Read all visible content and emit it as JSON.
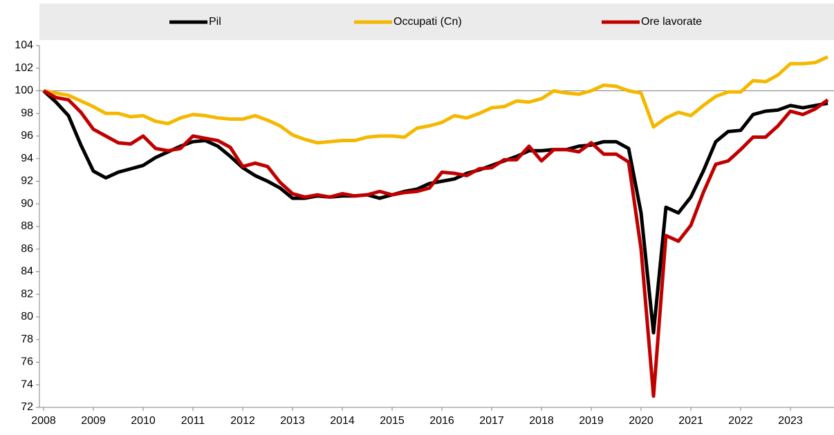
{
  "chart_data": {
    "type": "line",
    "categories": [
      "2008",
      null,
      null,
      null,
      "2009",
      null,
      null,
      null,
      "2010",
      null,
      null,
      null,
      "2011",
      null,
      null,
      null,
      "2012",
      null,
      null,
      null,
      "2013",
      null,
      null,
      null,
      "2014",
      null,
      null,
      null,
      "2015",
      null,
      null,
      null,
      "2016",
      null,
      null,
      null,
      "2017",
      null,
      null,
      null,
      "2018",
      null,
      null,
      null,
      "2019",
      null,
      null,
      null,
      "2020",
      null,
      null,
      null,
      "2021",
      null,
      null,
      null,
      "2022",
      null,
      null,
      null,
      "2023",
      null,
      null,
      null
    ],
    "series": [
      {
        "name": "Pil",
        "color": "#000000",
        "values": [
          100,
          99.0,
          97.8,
          95.2,
          92.9,
          92.3,
          92.8,
          93.1,
          93.4,
          94.1,
          94.6,
          95.1,
          95.5,
          95.6,
          95.1,
          94.2,
          93.2,
          92.5,
          92.0,
          91.4,
          90.5,
          90.5,
          90.7,
          90.6,
          90.7,
          90.7,
          90.8,
          90.5,
          90.8,
          91.1,
          91.3,
          91.8,
          92.0,
          92.2,
          92.7,
          93.0,
          93.4,
          93.8,
          94.2,
          94.7,
          94.7,
          94.8,
          94.8,
          95.1,
          95.2,
          95.5,
          95.5,
          94.9,
          89.2,
          78.6,
          89.7,
          89.2,
          90.6,
          92.9,
          95.5,
          96.4,
          96.5,
          97.9,
          98.2,
          98.3,
          98.7,
          98.5,
          98.7,
          98.9
        ]
      },
      {
        "name": "Occupati (Cn)",
        "color": "#f5b800",
        "values": [
          100,
          99.8,
          99.6,
          99.1,
          98.6,
          98.0,
          98.0,
          97.7,
          97.8,
          97.3,
          97.1,
          97.6,
          97.9,
          97.8,
          97.6,
          97.5,
          97.5,
          97.8,
          97.4,
          96.9,
          96.1,
          95.7,
          95.4,
          95.5,
          95.6,
          95.6,
          95.9,
          96.0,
          96.0,
          95.9,
          96.7,
          96.9,
          97.2,
          97.8,
          97.6,
          98.0,
          98.5,
          98.6,
          99.1,
          99.0,
          99.3,
          100.0,
          99.8,
          99.7,
          100.0,
          100.5,
          100.4,
          100.0,
          99.8,
          96.8,
          97.6,
          98.1,
          97.8,
          98.7,
          99.5,
          99.9,
          99.9,
          100.9,
          100.8,
          101.4,
          102.4,
          102.4,
          102.5,
          103.0
        ]
      },
      {
        "name": "Ore lavorate",
        "color": "#c00000",
        "values": [
          100,
          99.4,
          99.2,
          98.1,
          96.6,
          96.0,
          95.4,
          95.3,
          96.0,
          94.9,
          94.7,
          94.9,
          96.0,
          95.8,
          95.6,
          95.0,
          93.3,
          93.6,
          93.3,
          91.9,
          90.9,
          90.6,
          90.8,
          90.6,
          90.9,
          90.7,
          90.8,
          91.1,
          90.8,
          91.0,
          91.1,
          91.4,
          92.8,
          92.7,
          92.5,
          93.1,
          93.2,
          93.9,
          93.9,
          95.1,
          93.8,
          94.8,
          94.8,
          94.6,
          95.4,
          94.4,
          94.4,
          93.7,
          86.0,
          73.0,
          87.2,
          86.7,
          88.1,
          91.0,
          93.5,
          93.8,
          94.8,
          95.9,
          95.9,
          96.9,
          98.2,
          97.9,
          98.4,
          99.2
        ]
      }
    ],
    "ylim": [
      72,
      104
    ],
    "yticks": [
      72,
      74,
      76,
      78,
      80,
      82,
      84,
      86,
      88,
      90,
      92,
      94,
      96,
      98,
      100,
      102,
      104
    ],
    "reference_line": 100,
    "legend": "top"
  }
}
